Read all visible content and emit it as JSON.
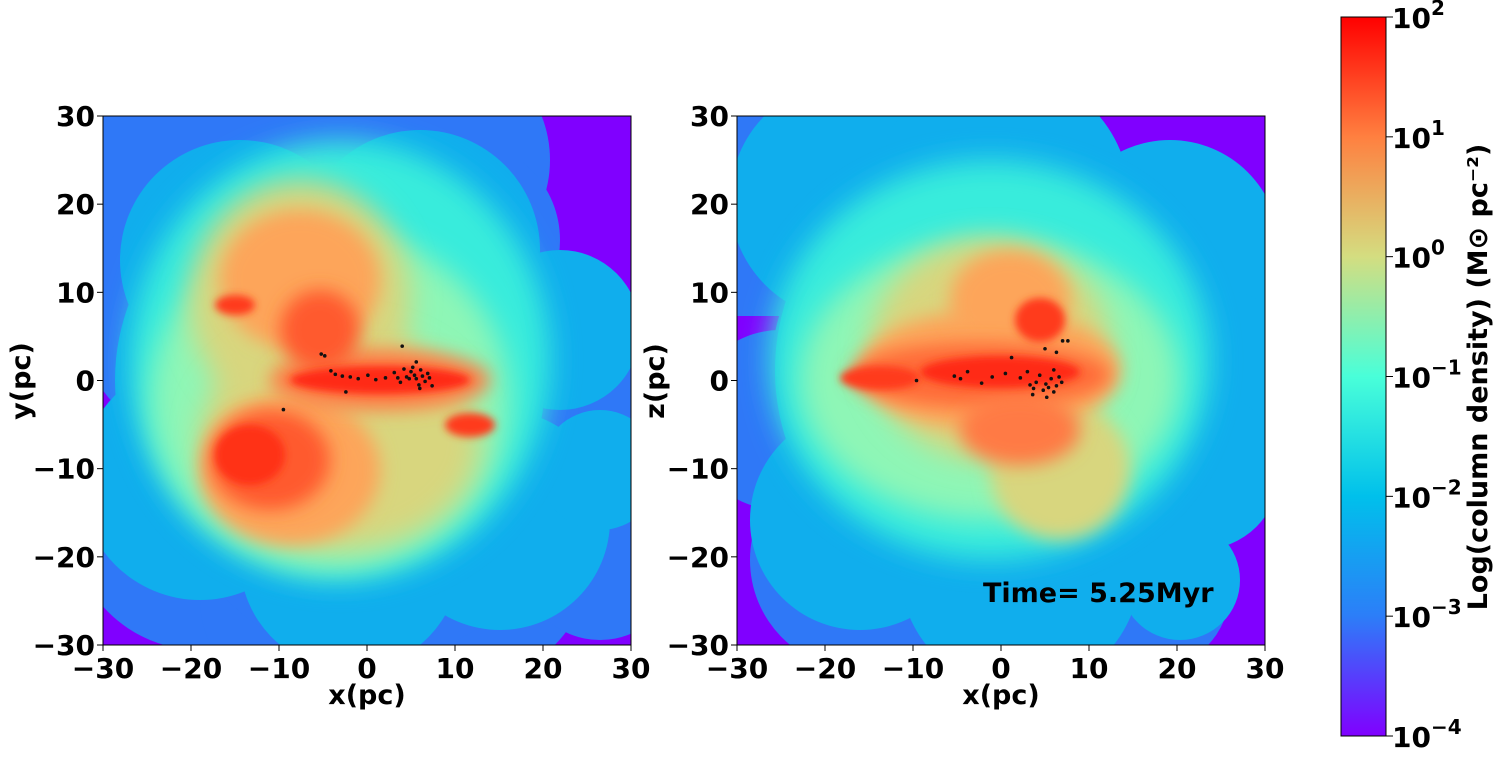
{
  "chart_data": [
    {
      "type": "heatmap",
      "projection": "x-y",
      "xlabel": "x(pc)",
      "ylabel": "y(pc)",
      "xlim": [
        -30,
        30
      ],
      "ylim": [
        -30,
        30
      ],
      "xticks": [
        "−30",
        "−20",
        "−10",
        "0",
        "10",
        "20",
        "30"
      ],
      "yticks": [
        "−30",
        "−20",
        "−10",
        "0",
        "10",
        "20",
        "30"
      ],
      "annotation": "",
      "stars": [
        [
          -5.2,
          3.0
        ],
        [
          -4.8,
          2.8
        ],
        [
          -4.1,
          1.1
        ],
        [
          -3.6,
          0.7
        ],
        [
          -2.8,
          0.5
        ],
        [
          -1.9,
          0.4
        ],
        [
          -1.0,
          0.2
        ],
        [
          0.1,
          0.6
        ],
        [
          1.0,
          0.1
        ],
        [
          2.1,
          0.3
        ],
        [
          3.1,
          0.9
        ],
        [
          3.5,
          0.3
        ],
        [
          3.8,
          -0.2
        ],
        [
          4.2,
          1.3
        ],
        [
          4.5,
          0.4
        ],
        [
          4.8,
          0.2
        ],
        [
          5.0,
          1.0
        ],
        [
          5.2,
          1.5
        ],
        [
          5.4,
          0.6
        ],
        [
          5.6,
          0.2
        ],
        [
          5.9,
          -0.5
        ],
        [
          6.1,
          1.2
        ],
        [
          6.3,
          0.5
        ],
        [
          6.6,
          -0.1
        ],
        [
          6.9,
          0.8
        ],
        [
          7.1,
          0.3
        ],
        [
          7.4,
          -0.6
        ],
        [
          4.0,
          3.9
        ],
        [
          5.6,
          2.1
        ],
        [
          -9.5,
          -3.3
        ],
        [
          -2.4,
          -1.3
        ],
        [
          6.0,
          -0.9
        ]
      ],
      "grid": false
    },
    {
      "type": "heatmap",
      "projection": "x-z",
      "xlabel": "x(pc)",
      "ylabel": "z(pc)",
      "xlim": [
        -30,
        30
      ],
      "ylim": [
        -30,
        30
      ],
      "xticks": [
        "−30",
        "−20",
        "−10",
        "0",
        "10",
        "20",
        "30"
      ],
      "yticks": [
        "−30",
        "−20",
        "−10",
        "0",
        "10",
        "20",
        "30"
      ],
      "annotation": "Time= 5.25Myr",
      "stars": [
        [
          -9.6,
          0.0
        ],
        [
          -5.3,
          0.5
        ],
        [
          -4.6,
          0.2
        ],
        [
          -3.8,
          1.0
        ],
        [
          -2.2,
          -0.3
        ],
        [
          -1.0,
          0.4
        ],
        [
          0.5,
          0.8
        ],
        [
          1.2,
          2.6
        ],
        [
          2.2,
          0.3
        ],
        [
          3.0,
          1.0
        ],
        [
          3.3,
          -0.5
        ],
        [
          3.7,
          -0.9
        ],
        [
          4.0,
          -0.2
        ],
        [
          4.4,
          0.6
        ],
        [
          4.8,
          -1.1
        ],
        [
          5.1,
          -0.4
        ],
        [
          5.4,
          -0.8
        ],
        [
          5.7,
          0.2
        ],
        [
          6.0,
          -1.3
        ],
        [
          6.3,
          -0.6
        ],
        [
          6.6,
          0.4
        ],
        [
          6.9,
          -0.2
        ],
        [
          5.2,
          -1.9
        ],
        [
          3.6,
          -1.6
        ],
        [
          6.0,
          1.2
        ],
        [
          7.0,
          4.5
        ],
        [
          7.6,
          4.5
        ],
        [
          5.0,
          3.6
        ],
        [
          6.3,
          3.2
        ]
      ],
      "grid": false
    }
  ],
  "colorbar": {
    "label": "Log(column density) (M⊙ pc⁻²)",
    "scale": "log",
    "range": [
      0.0001,
      100
    ],
    "ticks": [
      {
        "base": "10",
        "exp": "2"
      },
      {
        "base": "10",
        "exp": "1"
      },
      {
        "base": "10",
        "exp": "0"
      },
      {
        "base": "10",
        "exp": "−1"
      },
      {
        "base": "10",
        "exp": "−2"
      },
      {
        "base": "10",
        "exp": "−3"
      },
      {
        "base": "10",
        "exp": "−4"
      }
    ],
    "colormap": "rainbow",
    "colors": [
      "#8000ff",
      "#2c7ef8",
      "#00c0eb",
      "#49ffd9",
      "#d4dd80",
      "#ff8040",
      "#ff0000"
    ]
  }
}
